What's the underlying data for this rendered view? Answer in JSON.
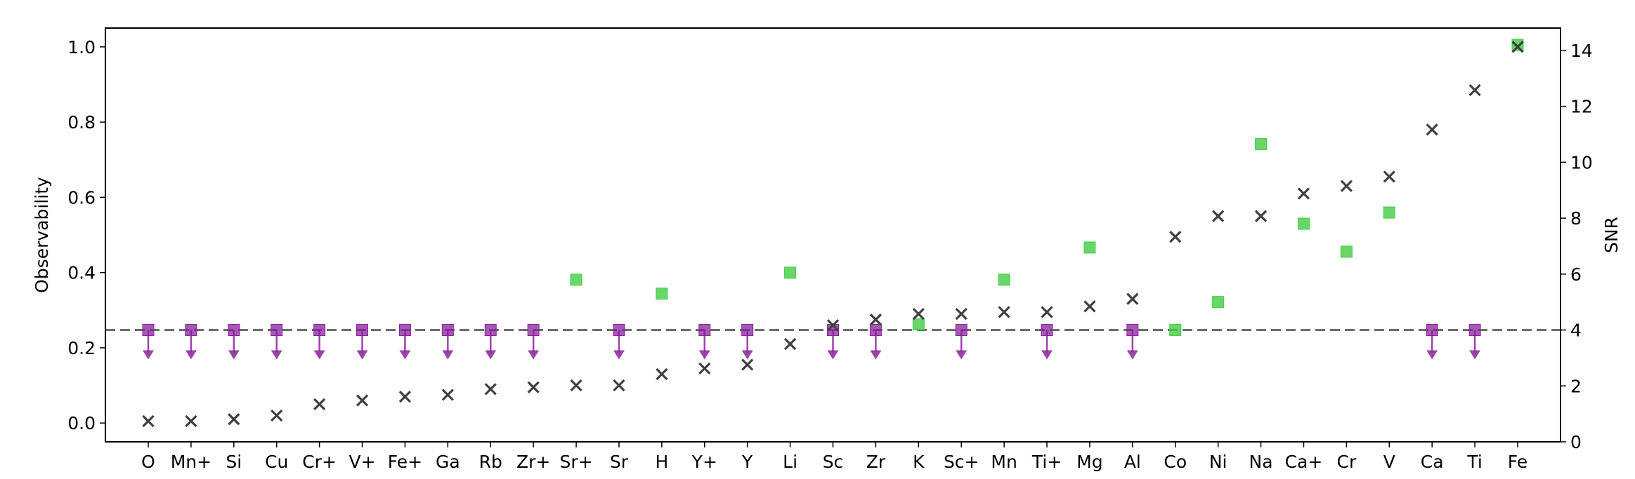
{
  "chart_data": {
    "type": "scatter",
    "categories": [
      "O",
      "Mn+",
      "Si",
      "Cu",
      "Cr+",
      "V+",
      "Fe+",
      "Ga",
      "Rb",
      "Zr+",
      "Sr+",
      "Sr",
      "H",
      "Y+",
      "Y",
      "Li",
      "Sc",
      "Zr",
      "K",
      "Sc+",
      "Mn",
      "Ti+",
      "Mg",
      "Al",
      "Co",
      "Ni",
      "Na",
      "Ca+",
      "Cr",
      "V",
      "Ca",
      "Ti",
      "Fe"
    ],
    "ylabel_left": "Observability",
    "ylabel_right": "SNR",
    "ylim_left": [
      -0.05,
      1.05
    ],
    "ylim_right": [
      0,
      14.8
    ],
    "yticks_left": [
      0.0,
      0.2,
      0.4,
      0.6,
      0.8,
      1.0
    ],
    "yticks_right": [
      0,
      2,
      4,
      6,
      8,
      10,
      12,
      14
    ],
    "threshold_snr": 4.0,
    "grid": false,
    "series": [
      {
        "axis": "left",
        "marker": "x",
        "color": "#404040",
        "values": [
          0.005,
          0.005,
          0.01,
          0.02,
          0.05,
          0.06,
          0.07,
          0.075,
          0.09,
          0.095,
          0.1,
          0.1,
          0.13,
          0.145,
          0.155,
          0.21,
          0.26,
          0.275,
          0.29,
          0.29,
          0.295,
          0.295,
          0.31,
          0.33,
          0.495,
          0.55,
          0.55,
          0.61,
          0.63,
          0.655,
          0.78,
          0.885,
          1.0
        ]
      },
      {
        "axis": "right",
        "marker": "square",
        "color": "#44cc44",
        "points": [
          {
            "category": "Sr+",
            "value": 5.8
          },
          {
            "category": "H",
            "value": 5.3
          },
          {
            "category": "Li",
            "value": 6.05
          },
          {
            "category": "K",
            "value": 4.2
          },
          {
            "category": "Mn",
            "value": 5.8
          },
          {
            "category": "Mg",
            "value": 6.95
          },
          {
            "category": "Co",
            "value": 4.0
          },
          {
            "category": "Ni",
            "value": 5.0
          },
          {
            "category": "Na",
            "value": 10.65
          },
          {
            "category": "Ca+",
            "value": 7.8
          },
          {
            "category": "Cr",
            "value": 6.8
          },
          {
            "category": "V",
            "value": 8.2
          },
          {
            "category": "Fe",
            "value": 14.2
          }
        ]
      },
      {
        "axis": "right",
        "marker": "square-upper-limit",
        "color": "#882299",
        "points": [
          {
            "category": "O",
            "value": 4.0
          },
          {
            "category": "Mn+",
            "value": 4.0
          },
          {
            "category": "Si",
            "value": 4.0
          },
          {
            "category": "Cu",
            "value": 4.0
          },
          {
            "category": "Cr+",
            "value": 4.0
          },
          {
            "category": "V+",
            "value": 4.0
          },
          {
            "category": "Fe+",
            "value": 4.0
          },
          {
            "category": "Ga",
            "value": 4.0
          },
          {
            "category": "Rb",
            "value": 4.0
          },
          {
            "category": "Zr+",
            "value": 4.0
          },
          {
            "category": "Sr",
            "value": 4.0
          },
          {
            "category": "Y+",
            "value": 4.0
          },
          {
            "category": "Y",
            "value": 4.0
          },
          {
            "category": "Sc",
            "value": 4.0
          },
          {
            "category": "Zr",
            "value": 4.0
          },
          {
            "category": "Sc+",
            "value": 4.0
          },
          {
            "category": "Ti+",
            "value": 4.0
          },
          {
            "category": "Al",
            "value": 4.0
          },
          {
            "category": "Ca",
            "value": 4.0
          },
          {
            "category": "Ti",
            "value": 4.0
          }
        ]
      }
    ]
  }
}
